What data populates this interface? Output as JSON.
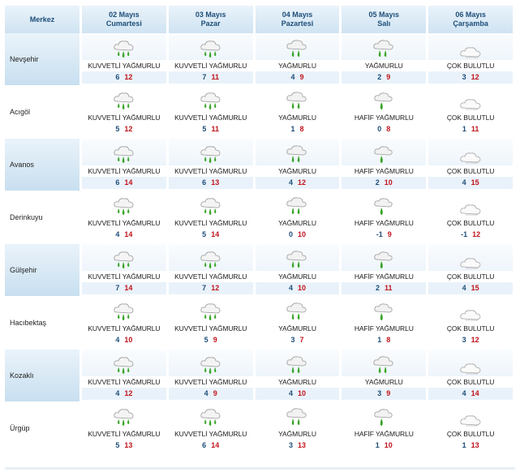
{
  "header": {
    "merkez_label": "Merkez",
    "days": [
      {
        "date": "02 Mayıs",
        "weekday": "Cumartesi"
      },
      {
        "date": "03 Mayıs",
        "weekday": "Pazar"
      },
      {
        "date": "04 Mayıs",
        "weekday": "Pazartesi"
      },
      {
        "date": "05 Mayıs",
        "weekday": "Salı"
      },
      {
        "date": "06 Mayıs",
        "weekday": "Çarşamba"
      }
    ]
  },
  "colors": {
    "header_text": "#1d4e79",
    "min_temp": "#1d4e79",
    "max_temp": "#c0141c",
    "header_bg": "#cfe3f2",
    "rain_green": "#3aa52a"
  },
  "icons": {
    "heavy_rain": "heavy-rain-cloud-icon",
    "rain": "rain-cloud-icon",
    "light_rain": "light-rain-cloud-icon",
    "cloudy": "cloudy-icon"
  },
  "rows": [
    {
      "city": "Nevşehir",
      "days": [
        {
          "icon": "heavy_rain",
          "desc": "KUVVETLİ YAĞMURLU",
          "min": "6",
          "max": "12"
        },
        {
          "icon": "heavy_rain",
          "desc": "KUVVETLİ YAĞMURLU",
          "min": "7",
          "max": "11"
        },
        {
          "icon": "rain",
          "desc": "YAĞMURLU",
          "min": "4",
          "max": "9"
        },
        {
          "icon": "rain",
          "desc": "YAĞMURLU",
          "min": "2",
          "max": "9"
        },
        {
          "icon": "cloudy",
          "desc": "ÇOK BULUTLU",
          "min": "3",
          "max": "12"
        }
      ]
    },
    {
      "city": "Acıgöl",
      "days": [
        {
          "icon": "heavy_rain",
          "desc": "KUVVETLİ YAĞMURLU",
          "min": "5",
          "max": "12"
        },
        {
          "icon": "heavy_rain",
          "desc": "KUVVETLİ YAĞMURLU",
          "min": "5",
          "max": "11"
        },
        {
          "icon": "rain",
          "desc": "YAĞMURLU",
          "min": "1",
          "max": "8"
        },
        {
          "icon": "light_rain",
          "desc": "HAFİF YAĞMURLU",
          "min": "0",
          "max": "8"
        },
        {
          "icon": "cloudy",
          "desc": "ÇOK BULUTLU",
          "min": "1",
          "max": "11"
        }
      ]
    },
    {
      "city": "Avanos",
      "days": [
        {
          "icon": "heavy_rain",
          "desc": "KUVVETLİ YAĞMURLU",
          "min": "6",
          "max": "14"
        },
        {
          "icon": "heavy_rain",
          "desc": "KUVVETLİ YAĞMURLU",
          "min": "6",
          "max": "13"
        },
        {
          "icon": "rain",
          "desc": "YAĞMURLU",
          "min": "4",
          "max": "12"
        },
        {
          "icon": "light_rain",
          "desc": "HAFİF YAĞMURLU",
          "min": "2",
          "max": "10"
        },
        {
          "icon": "cloudy",
          "desc": "ÇOK BULUTLU",
          "min": "4",
          "max": "15"
        }
      ]
    },
    {
      "city": "Derinkuyu",
      "days": [
        {
          "icon": "heavy_rain",
          "desc": "KUVVETLİ YAĞMURLU",
          "min": "4",
          "max": "14"
        },
        {
          "icon": "heavy_rain",
          "desc": "KUVVETLİ YAĞMURLU",
          "min": "5",
          "max": "14"
        },
        {
          "icon": "rain",
          "desc": "YAĞMURLU",
          "min": "0",
          "max": "10"
        },
        {
          "icon": "light_rain",
          "desc": "HAFİF YAĞMURLU",
          "min": "-1",
          "max": "9"
        },
        {
          "icon": "cloudy",
          "desc": "ÇOK BULUTLU",
          "min": "-1",
          "max": "12"
        }
      ]
    },
    {
      "city": "Gülşehir",
      "days": [
        {
          "icon": "heavy_rain",
          "desc": "KUVVETLİ YAĞMURLU",
          "min": "7",
          "max": "14"
        },
        {
          "icon": "heavy_rain",
          "desc": "KUVVETLİ YAĞMURLU",
          "min": "7",
          "max": "12"
        },
        {
          "icon": "rain",
          "desc": "YAĞMURLU",
          "min": "4",
          "max": "10"
        },
        {
          "icon": "light_rain",
          "desc": "HAFİF YAĞMURLU",
          "min": "2",
          "max": "11"
        },
        {
          "icon": "cloudy",
          "desc": "ÇOK BULUTLU",
          "min": "4",
          "max": "15"
        }
      ]
    },
    {
      "city": "Hacıbektaş",
      "days": [
        {
          "icon": "heavy_rain",
          "desc": "KUVVETLİ YAĞMURLU",
          "min": "4",
          "max": "10"
        },
        {
          "icon": "heavy_rain",
          "desc": "KUVVETLİ YAĞMURLU",
          "min": "5",
          "max": "9"
        },
        {
          "icon": "rain",
          "desc": "YAĞMURLU",
          "min": "3",
          "max": "7"
        },
        {
          "icon": "light_rain",
          "desc": "HAFİF YAĞMURLU",
          "min": "1",
          "max": "8"
        },
        {
          "icon": "cloudy",
          "desc": "ÇOK BULUTLU",
          "min": "3",
          "max": "12"
        }
      ]
    },
    {
      "city": "Kozaklı",
      "days": [
        {
          "icon": "heavy_rain",
          "desc": "KUVVETLİ YAĞMURLU",
          "min": "4",
          "max": "12"
        },
        {
          "icon": "heavy_rain",
          "desc": "KUVVETLİ YAĞMURLU",
          "min": "4",
          "max": "9"
        },
        {
          "icon": "rain",
          "desc": "YAĞMURLU",
          "min": "4",
          "max": "10"
        },
        {
          "icon": "rain",
          "desc": "YAĞMURLU",
          "min": "3",
          "max": "9"
        },
        {
          "icon": "cloudy",
          "desc": "ÇOK BULUTLU",
          "min": "4",
          "max": "14"
        }
      ]
    },
    {
      "city": "Ürgüp",
      "days": [
        {
          "icon": "heavy_rain",
          "desc": "KUVVETLİ YAĞMURLU",
          "min": "5",
          "max": "13"
        },
        {
          "icon": "heavy_rain",
          "desc": "KUVVETLİ YAĞMURLU",
          "min": "6",
          "max": "14"
        },
        {
          "icon": "rain",
          "desc": "YAĞMURLU",
          "min": "3",
          "max": "13"
        },
        {
          "icon": "light_rain",
          "desc": "HAFİF YAĞMURLU",
          "min": "1",
          "max": "10"
        },
        {
          "icon": "cloudy",
          "desc": "ÇOK BULUTLU",
          "min": "1",
          "max": "13"
        }
      ]
    }
  ]
}
